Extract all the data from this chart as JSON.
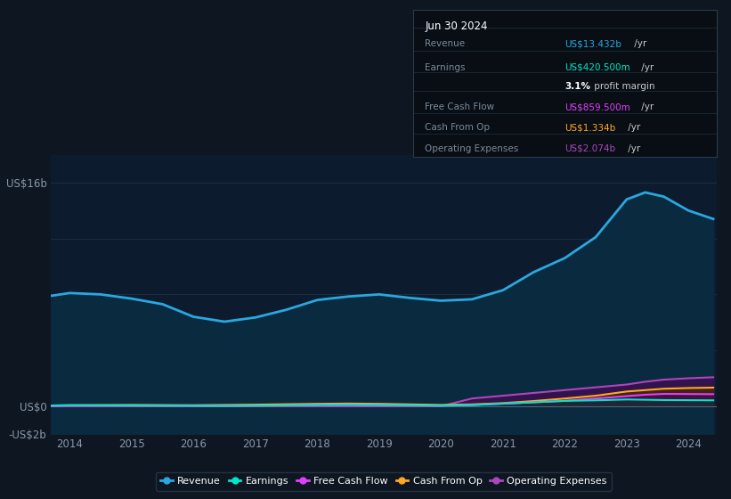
{
  "bg_color": "#0e1621",
  "plot_bg_color": "#0d1b2e",
  "grid_color": "#1a2e40",
  "title_box": {
    "date": "Jun 30 2024",
    "rows": [
      {
        "label": "Revenue",
        "value": "US$13.432b",
        "unit": " /yr",
        "value_color": "#29a8e0"
      },
      {
        "label": "Earnings",
        "value": "US$420.500m",
        "unit": " /yr",
        "value_color": "#00e5cc"
      },
      {
        "label": "",
        "value": "3.1%",
        "unit": " profit margin",
        "value_color": "#ffffff",
        "bold_value": true
      },
      {
        "label": "Free Cash Flow",
        "value": "US$859.500m",
        "unit": " /yr",
        "value_color": "#e040fb"
      },
      {
        "label": "Cash From Op",
        "value": "US$1.334b",
        "unit": " /yr",
        "value_color": "#ffa726"
      },
      {
        "label": "Operating Expenses",
        "value": "US$2.074b",
        "unit": " /yr",
        "value_color": "#ab47bc"
      }
    ]
  },
  "years": [
    2013.7,
    2014.0,
    2014.5,
    2015.0,
    2015.5,
    2016.0,
    2016.5,
    2017.0,
    2017.5,
    2018.0,
    2018.5,
    2019.0,
    2019.5,
    2020.0,
    2020.5,
    2021.0,
    2021.5,
    2022.0,
    2022.5,
    2023.0,
    2023.3,
    2023.6,
    2024.0,
    2024.4
  ],
  "revenue": [
    7.9,
    8.1,
    8.0,
    7.7,
    7.3,
    6.4,
    6.05,
    6.35,
    6.9,
    7.6,
    7.85,
    8.0,
    7.75,
    7.55,
    7.65,
    8.3,
    9.6,
    10.6,
    12.1,
    14.8,
    15.3,
    15.0,
    14.0,
    13.4
  ],
  "earnings": [
    0.04,
    0.07,
    0.06,
    0.05,
    0.04,
    0.03,
    0.02,
    0.04,
    0.06,
    0.09,
    0.11,
    0.09,
    0.07,
    0.04,
    0.08,
    0.18,
    0.28,
    0.38,
    0.42,
    0.48,
    0.46,
    0.44,
    0.43,
    0.42
  ],
  "free_cash_flow": [
    0.01,
    0.03,
    0.03,
    0.04,
    0.04,
    0.03,
    0.03,
    0.04,
    0.06,
    0.08,
    0.09,
    0.07,
    0.05,
    0.03,
    0.08,
    0.18,
    0.28,
    0.38,
    0.55,
    0.72,
    0.82,
    0.88,
    0.87,
    0.86
  ],
  "cash_from_op": [
    0.05,
    0.07,
    0.08,
    0.09,
    0.08,
    0.07,
    0.09,
    0.11,
    0.14,
    0.17,
    0.19,
    0.17,
    0.13,
    0.09,
    0.13,
    0.22,
    0.37,
    0.55,
    0.75,
    1.05,
    1.15,
    1.25,
    1.3,
    1.33
  ],
  "operating_expenses": [
    0.0,
    0.0,
    0.0,
    0.0,
    0.0,
    0.0,
    0.0,
    0.0,
    0.0,
    0.0,
    0.0,
    0.0,
    0.0,
    0.0,
    0.55,
    0.75,
    0.95,
    1.15,
    1.35,
    1.55,
    1.75,
    1.9,
    2.0,
    2.07
  ],
  "revenue_color": "#29a8e0",
  "revenue_fill_color": "#0a2a40",
  "earnings_color": "#00e5cc",
  "earnings_fill_color": "#003d35",
  "free_cash_flow_color": "#e040fb",
  "free_cash_flow_fill_color": "#4a0050",
  "cash_from_op_color": "#ffa726",
  "cash_from_op_fill_color": "#4a2a00",
  "operating_expenses_color": "#ab47bc",
  "operating_expenses_fill_color": "#3a1050",
  "ylim_min": -2,
  "ylim_max": 18,
  "ytick_vals": [
    -2,
    0,
    4,
    8,
    12,
    16
  ],
  "ytick_labels": [
    "-US$2b",
    "US$0",
    "",
    "",
    "",
    "US$16b"
  ],
  "xticks": [
    2014,
    2015,
    2016,
    2017,
    2018,
    2019,
    2020,
    2021,
    2022,
    2023,
    2024
  ],
  "legend": [
    {
      "label": "Revenue",
      "color": "#29a8e0"
    },
    {
      "label": "Earnings",
      "color": "#00e5cc"
    },
    {
      "label": "Free Cash Flow",
      "color": "#e040fb"
    },
    {
      "label": "Cash From Op",
      "color": "#ffa726"
    },
    {
      "label": "Operating Expenses",
      "color": "#ab47bc"
    }
  ]
}
